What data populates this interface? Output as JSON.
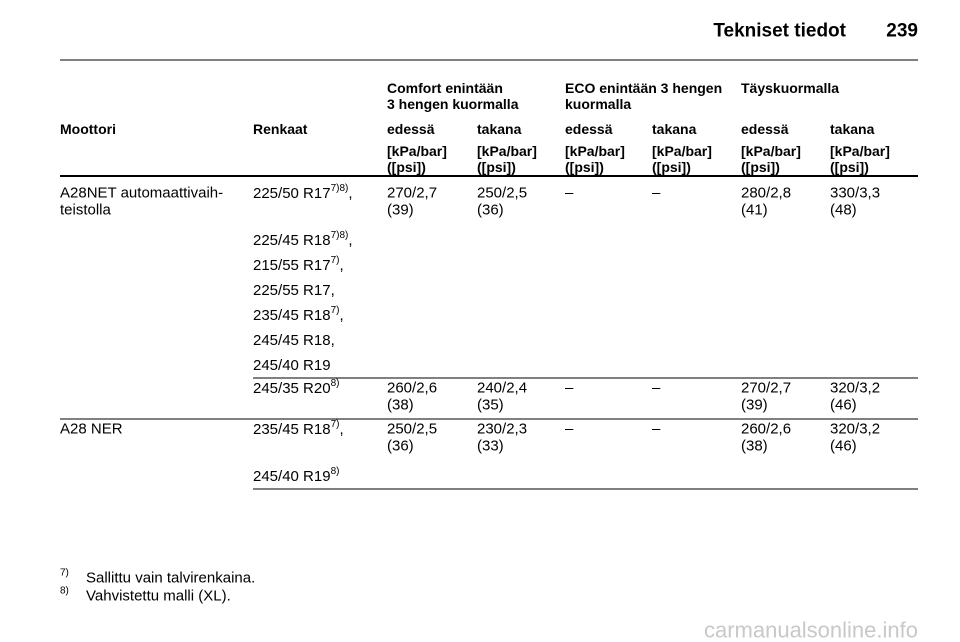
{
  "header": {
    "title": "Tekniset tiedot",
    "page": "239"
  },
  "table": {
    "group_headers": [
      [
        "Comfort enintään",
        "3 hengen kuormalla"
      ],
      [
        "ECO enintään 3 hengen",
        "kuormalla"
      ],
      [
        "Täyskuormalla"
      ]
    ],
    "columns": [
      "Moottori",
      "Renkaat",
      "edessä",
      "takana",
      "edessä",
      "takana",
      "edessä",
      "takana"
    ],
    "units": [
      [
        "[kPa/bar]",
        "([psi])"
      ],
      [
        "[kPa/bar]",
        "([psi])"
      ],
      [
        "[kPa/bar]",
        "([psi])"
      ],
      [
        "[kPa/bar]",
        "([psi])"
      ],
      [
        "[kPa/bar]",
        "([psi])"
      ],
      [
        "[kPa/bar]",
        "([psi])"
      ]
    ],
    "rows": [
      {
        "engine": [
          "A28NET automaattivaih-",
          "teistolla"
        ],
        "groups": [
          {
            "tires": [
              {
                "text": "225/50 R17",
                "note": "7)8)",
                "after": ","
              },
              {
                "text": "225/45 R18",
                "note": "7)8)",
                "after": ","
              },
              {
                "text": "215/55 R17",
                "note": "7)",
                "after": ","
              },
              {
                "text": "225/55 R17,"
              },
              {
                "text": "235/45 R18",
                "note": "7)",
                "after": ","
              },
              {
                "text": "245/45 R18,"
              },
              {
                "text": "245/40 R19"
              }
            ],
            "values": [
              [
                "270/2,7",
                "(39)"
              ],
              [
                "250/2,5",
                "(36)"
              ],
              [
                "–"
              ],
              [
                "–"
              ],
              [
                "280/2,8",
                "(41)"
              ],
              [
                "330/3,3",
                "(48)"
              ]
            ]
          },
          {
            "tires": [
              {
                "text": "245/35 R20",
                "note": "8)"
              }
            ],
            "values": [
              [
                "260/2,6",
                "(38)"
              ],
              [
                "240/2,4",
                "(35)"
              ],
              [
                "–"
              ],
              [
                "–"
              ],
              [
                "270/2,7",
                "(39)"
              ],
              [
                "320/3,2",
                "(46)"
              ]
            ]
          }
        ]
      },
      {
        "engine": [
          "A28 NER"
        ],
        "groups": [
          {
            "tires": [
              {
                "text": "235/45 R18",
                "note": "7)",
                "after": ","
              },
              {
                "text": "245/40 R19",
                "note": "8)"
              }
            ],
            "values": [
              [
                "250/2,5",
                "(36)"
              ],
              [
                "230/2,3",
                "(33)"
              ],
              [
                "–"
              ],
              [
                "–"
              ],
              [
                "260/2,6",
                "(38)"
              ],
              [
                "320/3,2",
                "(46)"
              ]
            ]
          }
        ]
      }
    ]
  },
  "footnotes": [
    {
      "mark": "7)",
      "text": "Sallittu vain talvirenkaina."
    },
    {
      "mark": "8)",
      "text": "Vahvistettu malli (XL)."
    }
  ],
  "watermark": "carmanualsonline.info"
}
